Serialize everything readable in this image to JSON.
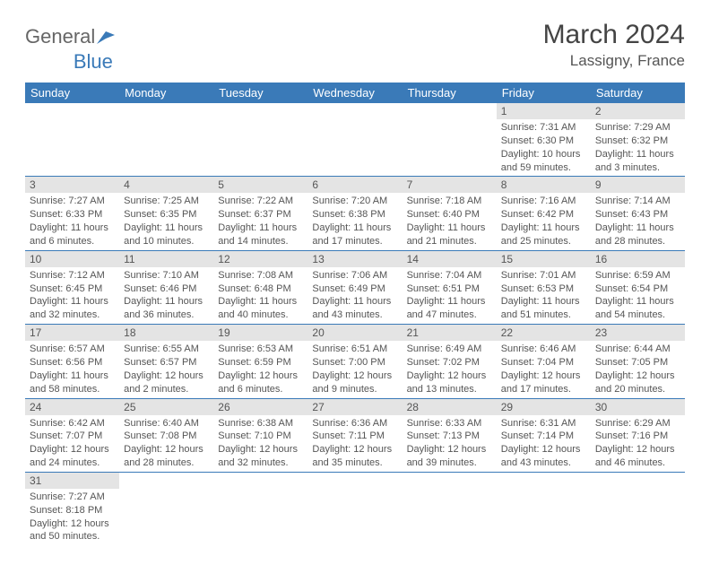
{
  "brand": {
    "part1": "General",
    "part2": "Blue"
  },
  "title": "March 2024",
  "location": "Lassigny, France",
  "colors": {
    "header_bg": "#3a7ab8",
    "daynum_bg": "#e4e4e4",
    "text": "#555555"
  },
  "day_headers": [
    "Sunday",
    "Monday",
    "Tuesday",
    "Wednesday",
    "Thursday",
    "Friday",
    "Saturday"
  ],
  "weeks": [
    [
      null,
      null,
      null,
      null,
      null,
      {
        "n": "1",
        "sr": "Sunrise: 7:31 AM",
        "ss": "Sunset: 6:30 PM",
        "dl1": "Daylight: 10 hours",
        "dl2": "and 59 minutes."
      },
      {
        "n": "2",
        "sr": "Sunrise: 7:29 AM",
        "ss": "Sunset: 6:32 PM",
        "dl1": "Daylight: 11 hours",
        "dl2": "and 3 minutes."
      }
    ],
    [
      {
        "n": "3",
        "sr": "Sunrise: 7:27 AM",
        "ss": "Sunset: 6:33 PM",
        "dl1": "Daylight: 11 hours",
        "dl2": "and 6 minutes."
      },
      {
        "n": "4",
        "sr": "Sunrise: 7:25 AM",
        "ss": "Sunset: 6:35 PM",
        "dl1": "Daylight: 11 hours",
        "dl2": "and 10 minutes."
      },
      {
        "n": "5",
        "sr": "Sunrise: 7:22 AM",
        "ss": "Sunset: 6:37 PM",
        "dl1": "Daylight: 11 hours",
        "dl2": "and 14 minutes."
      },
      {
        "n": "6",
        "sr": "Sunrise: 7:20 AM",
        "ss": "Sunset: 6:38 PM",
        "dl1": "Daylight: 11 hours",
        "dl2": "and 17 minutes."
      },
      {
        "n": "7",
        "sr": "Sunrise: 7:18 AM",
        "ss": "Sunset: 6:40 PM",
        "dl1": "Daylight: 11 hours",
        "dl2": "and 21 minutes."
      },
      {
        "n": "8",
        "sr": "Sunrise: 7:16 AM",
        "ss": "Sunset: 6:42 PM",
        "dl1": "Daylight: 11 hours",
        "dl2": "and 25 minutes."
      },
      {
        "n": "9",
        "sr": "Sunrise: 7:14 AM",
        "ss": "Sunset: 6:43 PM",
        "dl1": "Daylight: 11 hours",
        "dl2": "and 28 minutes."
      }
    ],
    [
      {
        "n": "10",
        "sr": "Sunrise: 7:12 AM",
        "ss": "Sunset: 6:45 PM",
        "dl1": "Daylight: 11 hours",
        "dl2": "and 32 minutes."
      },
      {
        "n": "11",
        "sr": "Sunrise: 7:10 AM",
        "ss": "Sunset: 6:46 PM",
        "dl1": "Daylight: 11 hours",
        "dl2": "and 36 minutes."
      },
      {
        "n": "12",
        "sr": "Sunrise: 7:08 AM",
        "ss": "Sunset: 6:48 PM",
        "dl1": "Daylight: 11 hours",
        "dl2": "and 40 minutes."
      },
      {
        "n": "13",
        "sr": "Sunrise: 7:06 AM",
        "ss": "Sunset: 6:49 PM",
        "dl1": "Daylight: 11 hours",
        "dl2": "and 43 minutes."
      },
      {
        "n": "14",
        "sr": "Sunrise: 7:04 AM",
        "ss": "Sunset: 6:51 PM",
        "dl1": "Daylight: 11 hours",
        "dl2": "and 47 minutes."
      },
      {
        "n": "15",
        "sr": "Sunrise: 7:01 AM",
        "ss": "Sunset: 6:53 PM",
        "dl1": "Daylight: 11 hours",
        "dl2": "and 51 minutes."
      },
      {
        "n": "16",
        "sr": "Sunrise: 6:59 AM",
        "ss": "Sunset: 6:54 PM",
        "dl1": "Daylight: 11 hours",
        "dl2": "and 54 minutes."
      }
    ],
    [
      {
        "n": "17",
        "sr": "Sunrise: 6:57 AM",
        "ss": "Sunset: 6:56 PM",
        "dl1": "Daylight: 11 hours",
        "dl2": "and 58 minutes."
      },
      {
        "n": "18",
        "sr": "Sunrise: 6:55 AM",
        "ss": "Sunset: 6:57 PM",
        "dl1": "Daylight: 12 hours",
        "dl2": "and 2 minutes."
      },
      {
        "n": "19",
        "sr": "Sunrise: 6:53 AM",
        "ss": "Sunset: 6:59 PM",
        "dl1": "Daylight: 12 hours",
        "dl2": "and 6 minutes."
      },
      {
        "n": "20",
        "sr": "Sunrise: 6:51 AM",
        "ss": "Sunset: 7:00 PM",
        "dl1": "Daylight: 12 hours",
        "dl2": "and 9 minutes."
      },
      {
        "n": "21",
        "sr": "Sunrise: 6:49 AM",
        "ss": "Sunset: 7:02 PM",
        "dl1": "Daylight: 12 hours",
        "dl2": "and 13 minutes."
      },
      {
        "n": "22",
        "sr": "Sunrise: 6:46 AM",
        "ss": "Sunset: 7:04 PM",
        "dl1": "Daylight: 12 hours",
        "dl2": "and 17 minutes."
      },
      {
        "n": "23",
        "sr": "Sunrise: 6:44 AM",
        "ss": "Sunset: 7:05 PM",
        "dl1": "Daylight: 12 hours",
        "dl2": "and 20 minutes."
      }
    ],
    [
      {
        "n": "24",
        "sr": "Sunrise: 6:42 AM",
        "ss": "Sunset: 7:07 PM",
        "dl1": "Daylight: 12 hours",
        "dl2": "and 24 minutes."
      },
      {
        "n": "25",
        "sr": "Sunrise: 6:40 AM",
        "ss": "Sunset: 7:08 PM",
        "dl1": "Daylight: 12 hours",
        "dl2": "and 28 minutes."
      },
      {
        "n": "26",
        "sr": "Sunrise: 6:38 AM",
        "ss": "Sunset: 7:10 PM",
        "dl1": "Daylight: 12 hours",
        "dl2": "and 32 minutes."
      },
      {
        "n": "27",
        "sr": "Sunrise: 6:36 AM",
        "ss": "Sunset: 7:11 PM",
        "dl1": "Daylight: 12 hours",
        "dl2": "and 35 minutes."
      },
      {
        "n": "28",
        "sr": "Sunrise: 6:33 AM",
        "ss": "Sunset: 7:13 PM",
        "dl1": "Daylight: 12 hours",
        "dl2": "and 39 minutes."
      },
      {
        "n": "29",
        "sr": "Sunrise: 6:31 AM",
        "ss": "Sunset: 7:14 PM",
        "dl1": "Daylight: 12 hours",
        "dl2": "and 43 minutes."
      },
      {
        "n": "30",
        "sr": "Sunrise: 6:29 AM",
        "ss": "Sunset: 7:16 PM",
        "dl1": "Daylight: 12 hours",
        "dl2": "and 46 minutes."
      }
    ],
    [
      {
        "n": "31",
        "sr": "Sunrise: 7:27 AM",
        "ss": "Sunset: 8:18 PM",
        "dl1": "Daylight: 12 hours",
        "dl2": "and 50 minutes."
      },
      null,
      null,
      null,
      null,
      null,
      null
    ]
  ]
}
